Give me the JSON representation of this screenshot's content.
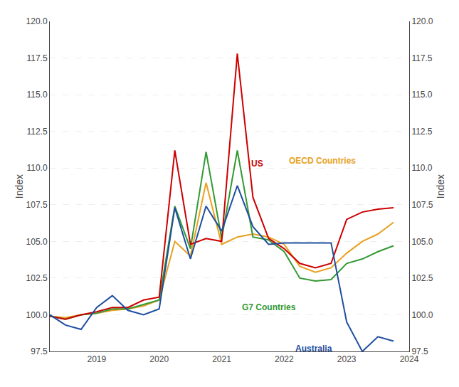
{
  "chart_data": {
    "type": "line",
    "ylabel": "Index",
    "y2label": "Index",
    "x": [
      2018.25,
      2018.5,
      2018.75,
      2019.0,
      2019.25,
      2019.5,
      2019.75,
      2020.0,
      2020.25,
      2020.5,
      2020.75,
      2021.0,
      2021.25,
      2021.5,
      2021.75,
      2022.0,
      2022.25,
      2022.5,
      2022.75,
      2023.0,
      2023.25,
      2023.5,
      2023.75
    ],
    "series": [
      {
        "name": "OECD Countries",
        "color": "#e8a020",
        "label_x": 2022.05,
        "label_y": 110.5,
        "values": [
          99.9,
          99.8,
          100.0,
          100.1,
          100.3,
          100.4,
          100.6,
          101.0,
          105.0,
          104.0,
          109.0,
          104.8,
          105.3,
          105.5,
          105.3,
          104.8,
          103.3,
          102.9,
          103.2,
          104.2,
          105.0,
          105.5,
          106.3
        ]
      },
      {
        "name": "G7 Countries",
        "color": "#339933",
        "label_x": 2021.3,
        "label_y": 100.5,
        "values": [
          99.9,
          99.7,
          100.0,
          100.1,
          100.4,
          100.4,
          100.7,
          101.0,
          107.4,
          104.5,
          111.1,
          105.2,
          111.2,
          105.3,
          105.1,
          104.3,
          102.5,
          102.3,
          102.4,
          103.5,
          103.8,
          104.3,
          104.7
        ]
      },
      {
        "name": "US",
        "color": "#cc0000",
        "label_x": 2021.45,
        "label_y": 110.3,
        "values": [
          99.9,
          99.7,
          100.0,
          100.2,
          100.5,
          100.5,
          101.0,
          101.2,
          111.2,
          104.8,
          105.2,
          105.0,
          117.8,
          108.0,
          105.2,
          104.5,
          103.5,
          103.2,
          103.5,
          106.5,
          107.0,
          107.2,
          107.3
        ]
      },
      {
        "name": "Australia",
        "color": "#1f4e9e",
        "label_x": 2022.15,
        "label_y": 97.7,
        "values": [
          100.0,
          99.3,
          99.0,
          100.5,
          101.3,
          100.3,
          100.0,
          100.4,
          107.3,
          103.8,
          107.4,
          105.7,
          108.8,
          106.0,
          104.8,
          104.9,
          104.9,
          104.9,
          104.9,
          99.5,
          97.5,
          98.5,
          98.2
        ]
      }
    ],
    "xlim": [
      2018.25,
      2024.0
    ],
    "xticks": [
      2019,
      2020,
      2021,
      2022,
      2023,
      2024
    ],
    "ylim": [
      97.5,
      120.0
    ],
    "yticks": [
      97.5,
      {
        "value": 100.0,
        "label": "100.0"
      },
      102.5,
      {
        "value": 105.0,
        "label": "105.0"
      },
      107.5,
      {
        "value": 110.0,
        "label": "110.0"
      },
      112.5,
      {
        "value": 115.0,
        "label": "115.0"
      },
      117.5,
      {
        "value": 120.0,
        "label": "120.0"
      }
    ],
    "y2lim": [
      97.5,
      120.0
    ],
    "y2ticks": [
      97.5,
      {
        "value": 100.0,
        "label": "100.0"
      },
      102.5,
      {
        "value": 105.0,
        "label": "105.0"
      },
      107.5,
      {
        "value": 110.0,
        "label": "110.0"
      },
      112.5,
      {
        "value": 115.0,
        "label": "115.0"
      },
      117.5,
      {
        "value": 120.0,
        "label": "120.0"
      }
    ],
    "grid": true
  }
}
